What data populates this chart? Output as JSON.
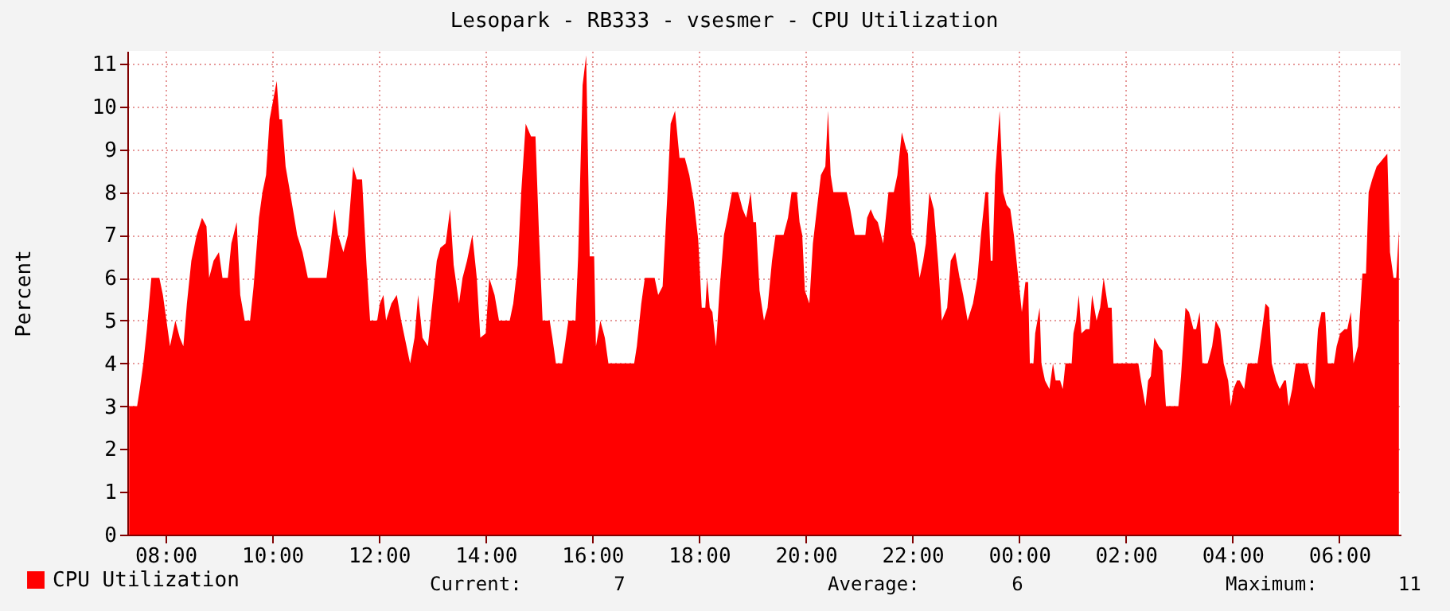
{
  "chart_data": {
    "type": "area",
    "title": "Lesopark - RB333 - vsesmer - CPU Utilization",
    "ylabel": "Percent",
    "xlim": [
      "--01-01T07:17",
      "--01-02T07:09"
    ],
    "xticks": [
      {
        "value": "--01-01T08:00",
        "label": "08:00"
      },
      {
        "value": "--01-01T10:00",
        "label": "10:00"
      },
      {
        "value": "--01-01T12:00",
        "label": "12:00"
      },
      {
        "value": "--01-01T14:00",
        "label": "14:00"
      },
      {
        "value": "--01-01T16:00",
        "label": "16:00"
      },
      {
        "value": "--01-01T18:00",
        "label": "18:00"
      },
      {
        "value": "--01-01T20:00",
        "label": "20:00"
      },
      {
        "value": "--01-01T22:00",
        "label": "22:00"
      },
      {
        "value": "--01-02T00:00",
        "label": "00:00"
      },
      {
        "value": "--01-02T02:00",
        "label": "02:00"
      },
      {
        "value": "--01-02T04:00",
        "label": "04:00"
      },
      {
        "value": "--01-02T06:00",
        "label": "06:00"
      }
    ],
    "ylim": [
      0,
      11.3
    ],
    "yticks": [
      0,
      1,
      2,
      3,
      4,
      5,
      6,
      7,
      8,
      9,
      10,
      11
    ],
    "grid": true,
    "legend": "bottom left",
    "annotations": [
      "Current:        7",
      "Average:        6",
      "Maximum:       11"
    ],
    "series": [
      {
        "name": "CPU Utilization",
        "color": "#ff0000",
        "x": [
          "--01-01T07:19",
          "--01-01T07:28",
          "--01-01T07:31",
          "--01-01T07:35",
          "--01-01T07:39",
          "--01-01T07:44",
          "--01-01T07:53",
          "--01-01T07:57",
          "--01-01T08:01",
          "--01-01T08:05",
          "--01-01T08:11",
          "--01-01T08:16",
          "--01-01T08:20",
          "--01-01T08:24",
          "--01-01T08:29",
          "--01-01T08:35",
          "--01-01T08:41",
          "--01-01T08:46",
          "--01-01T08:49",
          "--01-01T08:54",
          "--01-01T09:00",
          "--01-01T09:04",
          "--01-01T09:10",
          "--01-01T09:14",
          "--01-01T09:20",
          "--01-01T09:24",
          "--01-01T09:29",
          "--01-01T09:35",
          "--01-01T09:39",
          "--01-01T09:45",
          "--01-01T09:49",
          "--01-01T09:53",
          "--01-01T09:57",
          "--01-01T10:05",
          "--01-01T10:08",
          "--01-01T10:11",
          "--01-01T10:15",
          "--01-01T10:20",
          "--01-01T10:28",
          "--01-01T10:34",
          "--01-01T10:40",
          "--01-01T11:01",
          "--01-01T11:05",
          "--01-01T11:10",
          "--01-01T11:14",
          "--01-01T11:20",
          "--01-01T11:25",
          "--01-01T11:31",
          "--01-01T11:35",
          "--01-01T11:41",
          "--01-01T11:46",
          "--01-01T11:50",
          "--01-01T11:58",
          "--01-01T12:01",
          "--01-01T12:05",
          "--01-01T12:08",
          "--01-01T12:14",
          "--01-01T12:20",
          "--01-01T12:25",
          "--01-01T12:29",
          "--01-01T12:35",
          "--01-01T12:40",
          "--01-01T12:44",
          "--01-01T12:49",
          "--01-01T12:55",
          "--01-01T13:00",
          "--01-01T13:05",
          "--01-01T13:09",
          "--01-01T13:15",
          "--01-01T13:20",
          "--01-01T13:24",
          "--01-01T13:30",
          "--01-01T13:34",
          "--01-01T13:39",
          "--01-01T13:45",
          "--01-01T13:50",
          "--01-01T13:54",
          "--01-01T14:00",
          "--01-01T14:04",
          "--01-01T14:10",
          "--01-01T14:15",
          "--01-01T14:27",
          "--01-01T14:31",
          "--01-01T14:36",
          "--01-01T14:40",
          "--01-01T14:45",
          "--01-01T14:51",
          "--01-01T14:56",
          "--01-01T15:00",
          "--01-01T15:04",
          "--01-01T15:12",
          "--01-01T15:15",
          "--01-01T15:19",
          "--01-01T15:26",
          "--01-01T15:29",
          "--01-01T15:33",
          "--01-01T15:41",
          "--01-01T15:44",
          "--01-01T15:49",
          "--01-01T15:53",
          "--01-01T15:57",
          "--01-01T16:02",
          "--01-01T16:04",
          "--01-01T16:09",
          "--01-01T16:14",
          "--01-01T16:18",
          "--01-01T16:47",
          "--01-01T16:50",
          "--01-01T16:55",
          "--01-01T16:59",
          "--01-01T17:10",
          "--01-01T17:14",
          "--01-01T17:19",
          "--01-01T17:24",
          "--01-01T17:28",
          "--01-01T17:33",
          "--01-01T17:38",
          "--01-01T17:44",
          "--01-01T17:49",
          "--01-01T17:54",
          "--01-01T17:59",
          "--01-01T18:03",
          "--01-01T18:07",
          "--01-01T18:09",
          "--01-01T18:12",
          "--01-01T18:15",
          "--01-01T18:19",
          "--01-01T18:23",
          "--01-01T18:28",
          "--01-01T18:32",
          "--01-01T18:37",
          "--01-01T18:44",
          "--01-01T18:49",
          "--01-01T18:53",
          "--01-01T18:58",
          "--01-01T19:01",
          "--01-01T19:04",
          "--01-01T19:08",
          "--01-01T19:13",
          "--01-01T19:17",
          "--01-01T19:22",
          "--01-01T19:26",
          "--01-01T19:35",
          "--01-01T19:40",
          "--01-01T19:44",
          "--01-01T19:50",
          "--01-01T19:53",
          "--01-01T19:56",
          "--01-01T19:59",
          "--01-01T20:04",
          "--01-01T20:08",
          "--01-01T20:13",
          "--01-01T20:17",
          "--01-01T20:22",
          "--01-01T20:25",
          "--01-01T20:28",
          "--01-01T20:31",
          "--01-01T20:46",
          "--01-01T20:50",
          "--01-01T20:55",
          "--01-01T21:07",
          "--01-01T21:09",
          "--01-01T21:13",
          "--01-01T21:17",
          "--01-01T21:21",
          "--01-01T21:27",
          "--01-01T21:33",
          "--01-01T21:39",
          "--01-01T21:43",
          "--01-01T21:48",
          "--01-01T21:53",
          "--01-01T21:55",
          "--01-01T21:59",
          "--01-01T22:03",
          "--01-01T22:08",
          "--01-01T22:12",
          "--01-01T22:15",
          "--01-01T22:19",
          "--01-01T22:24",
          "--01-01T22:29",
          "--01-01T22:33",
          "--01-01T22:39",
          "--01-01T22:43",
          "--01-01T22:48",
          "--01-01T22:53",
          "--01-01T22:57",
          "--01-01T23:02",
          "--01-01T23:08",
          "--01-01T23:13",
          "--01-01T23:17",
          "--01-01T23:22",
          "--01-01T23:25",
          "--01-01T23:28",
          "--01-01T23:30",
          "--01-01T23:33",
          "--01-01T23:38",
          "--01-01T23:42",
          "--01-01T23:46",
          "--01-01T23:50",
          "--01-01T23:54",
          "--01-01T23:59",
          "--01-02T00:03",
          "--01-02T00:07",
          "--01-02T00:10",
          "--01-02T00:12",
          "--01-02T00:16",
          "--01-02T00:18",
          "--01-02T00:23",
          "--01-02T00:25",
          "--01-02T00:29",
          "--01-02T00:34",
          "--01-02T00:38",
          "--01-02T00:41",
          "--01-02T00:46",
          "--01-02T00:49",
          "--01-02T00:52",
          "--01-02T00:59",
          "--01-02T01:01",
          "--01-02T01:04",
          "--01-02T01:07",
          "--01-02T01:10",
          "--01-02T01:15",
          "--01-02T01:19",
          "--01-02T01:22",
          "--01-02T01:27",
          "--01-02T01:31",
          "--01-02T01:35",
          "--01-02T01:40",
          "--01-02T01:44",
          "--01-02T01:46",
          "--01-02T02:14",
          "--01-02T02:17",
          "--01-02T02:22",
          "--01-02T02:25",
          "--01-02T02:28",
          "--01-02T02:32",
          "--01-02T02:37",
          "--01-02T02:41",
          "--01-02T02:45",
          "--01-02T02:59",
          "--01-02T03:02",
          "--01-02T03:07",
          "--01-02T03:11",
          "--01-02T03:16",
          "--01-02T03:19",
          "--01-02T03:23",
          "--01-02T03:26",
          "--01-02T03:32",
          "--01-02T03:37",
          "--01-02T03:41",
          "--01-02T03:46",
          "--01-02T03:50",
          "--01-02T03:55",
          "--01-02T03:58",
          "--01-02T04:01",
          "--01-02T04:05",
          "--01-02T04:08",
          "--01-02T04:13",
          "--01-02T04:17",
          "--01-02T04:28",
          "--01-02T04:32",
          "--01-02T04:37",
          "--01-02T04:41",
          "--01-02T04:44",
          "--01-02T04:49",
          "--01-02T04:53",
          "--01-02T04:58",
          "--01-02T05:00",
          "--01-02T05:03",
          "--01-02T05:07",
          "--01-02T05:11",
          "--01-02T05:24",
          "--01-02T05:28",
          "--01-02T05:32",
          "--01-02T05:36",
          "--01-02T05:40",
          "--01-02T05:44",
          "--01-02T05:47",
          "--01-02T05:54",
          "--01-02T05:57",
          "--01-02T06:01",
          "--01-02T06:06",
          "--01-02T06:09",
          "--01-02T06:13",
          "--01-02T06:16",
          "--01-02T06:21",
          "--01-02T06:26",
          "--01-02T06:30",
          "--01-02T06:33",
          "--01-02T06:37",
          "--01-02T06:42",
          "--01-02T06:46",
          "--01-02T06:50",
          "--01-02T06:54",
          "--01-02T06:57",
          "--01-02T07:01",
          "--01-02T07:04",
          "--01-02T07:07"
        ],
        "values": [
          3.0,
          3.0,
          3.4,
          4.0,
          4.8,
          6.0,
          6.0,
          5.6,
          5.0,
          4.4,
          5.0,
          4.6,
          4.4,
          5.4,
          6.4,
          7.0,
          7.4,
          7.2,
          6.0,
          6.4,
          6.6,
          6.0,
          6.0,
          6.8,
          7.3,
          5.6,
          5.0,
          5.0,
          5.8,
          7.4,
          8.0,
          8.4,
          9.7,
          10.6,
          9.7,
          9.7,
          8.6,
          8.0,
          7.0,
          6.6,
          6.0,
          6.0,
          6.7,
          7.6,
          7.0,
          6.6,
          7.0,
          8.6,
          8.3,
          8.3,
          6.3,
          5.0,
          5.0,
          5.4,
          5.6,
          5.0,
          5.4,
          5.6,
          5.0,
          4.6,
          4.0,
          4.6,
          5.6,
          4.6,
          4.4,
          5.4,
          6.4,
          6.7,
          6.8,
          7.6,
          6.3,
          5.4,
          6.0,
          6.4,
          7.0,
          6.0,
          4.6,
          4.7,
          6.0,
          5.6,
          5.0,
          5.0,
          5.4,
          6.3,
          8.0,
          9.6,
          9.3,
          9.3,
          7.0,
          5.0,
          5.0,
          4.6,
          4.0,
          4.0,
          4.4,
          5.0,
          5.0,
          6.5,
          10.5,
          11.2,
          6.5,
          6.5,
          4.4,
          5.0,
          4.6,
          4.0,
          4.0,
          4.4,
          5.4,
          6.0,
          6.0,
          5.6,
          5.8,
          7.8,
          9.6,
          9.9,
          8.8,
          8.8,
          8.4,
          7.8,
          6.9,
          5.3,
          5.3,
          6.0,
          5.3,
          5.2,
          4.4,
          5.7,
          7.0,
          7.4,
          8.0,
          8.0,
          7.6,
          7.4,
          8.0,
          7.3,
          7.3,
          5.7,
          5.0,
          5.3,
          6.4,
          7.0,
          7.0,
          7.4,
          8.0,
          8.0,
          7.3,
          7.0,
          5.7,
          5.4,
          6.8,
          7.7,
          8.4,
          8.6,
          9.9,
          8.4,
          8.0,
          8.0,
          7.6,
          7.0,
          7.0,
          7.4,
          7.6,
          7.4,
          7.3,
          6.8,
          8.0,
          8.0,
          8.4,
          9.4,
          9.0,
          8.9,
          7.0,
          6.8,
          6.0,
          6.4,
          6.8,
          8.0,
          7.6,
          6.3,
          5.0,
          5.3,
          6.4,
          6.6,
          6.0,
          5.6,
          5.0,
          5.4,
          6.0,
          7.0,
          8.0,
          8.0,
          6.4,
          6.4,
          8.4,
          9.9,
          8.0,
          7.7,
          7.6,
          7.0,
          6.0,
          5.2,
          5.9,
          5.9,
          4.0,
          4.0,
          4.7,
          5.3,
          4.0,
          3.6,
          3.4,
          4.0,
          3.6,
          3.6,
          3.4,
          4.0,
          4.0,
          4.7,
          5.0,
          5.6,
          4.7,
          4.8,
          4.8,
          5.6,
          5.0,
          5.3,
          6.0,
          5.3,
          5.3,
          4.0,
          4.0,
          3.6,
          3.0,
          3.6,
          3.7,
          4.6,
          4.4,
          4.3,
          3.0,
          3.0,
          3.7,
          5.3,
          5.2,
          4.8,
          4.8,
          5.2,
          4.0,
          4.0,
          4.4,
          5.0,
          4.8,
          4.0,
          3.6,
          3.0,
          3.4,
          3.6,
          3.6,
          3.4,
          4.0,
          4.0,
          4.6,
          5.4,
          5.3,
          4.0,
          3.6,
          3.4,
          3.6,
          3.6,
          3.0,
          3.4,
          4.0,
          4.0,
          3.6,
          3.4,
          4.8,
          5.2,
          5.2,
          4.0,
          4.0,
          4.4,
          4.7,
          4.8,
          4.8,
          5.2,
          4.0,
          4.4,
          6.1,
          6.1,
          8.0,
          8.3,
          8.6,
          8.7,
          8.8,
          8.9,
          6.6,
          6.0,
          6.0,
          7.1
        ]
      }
    ]
  }
}
